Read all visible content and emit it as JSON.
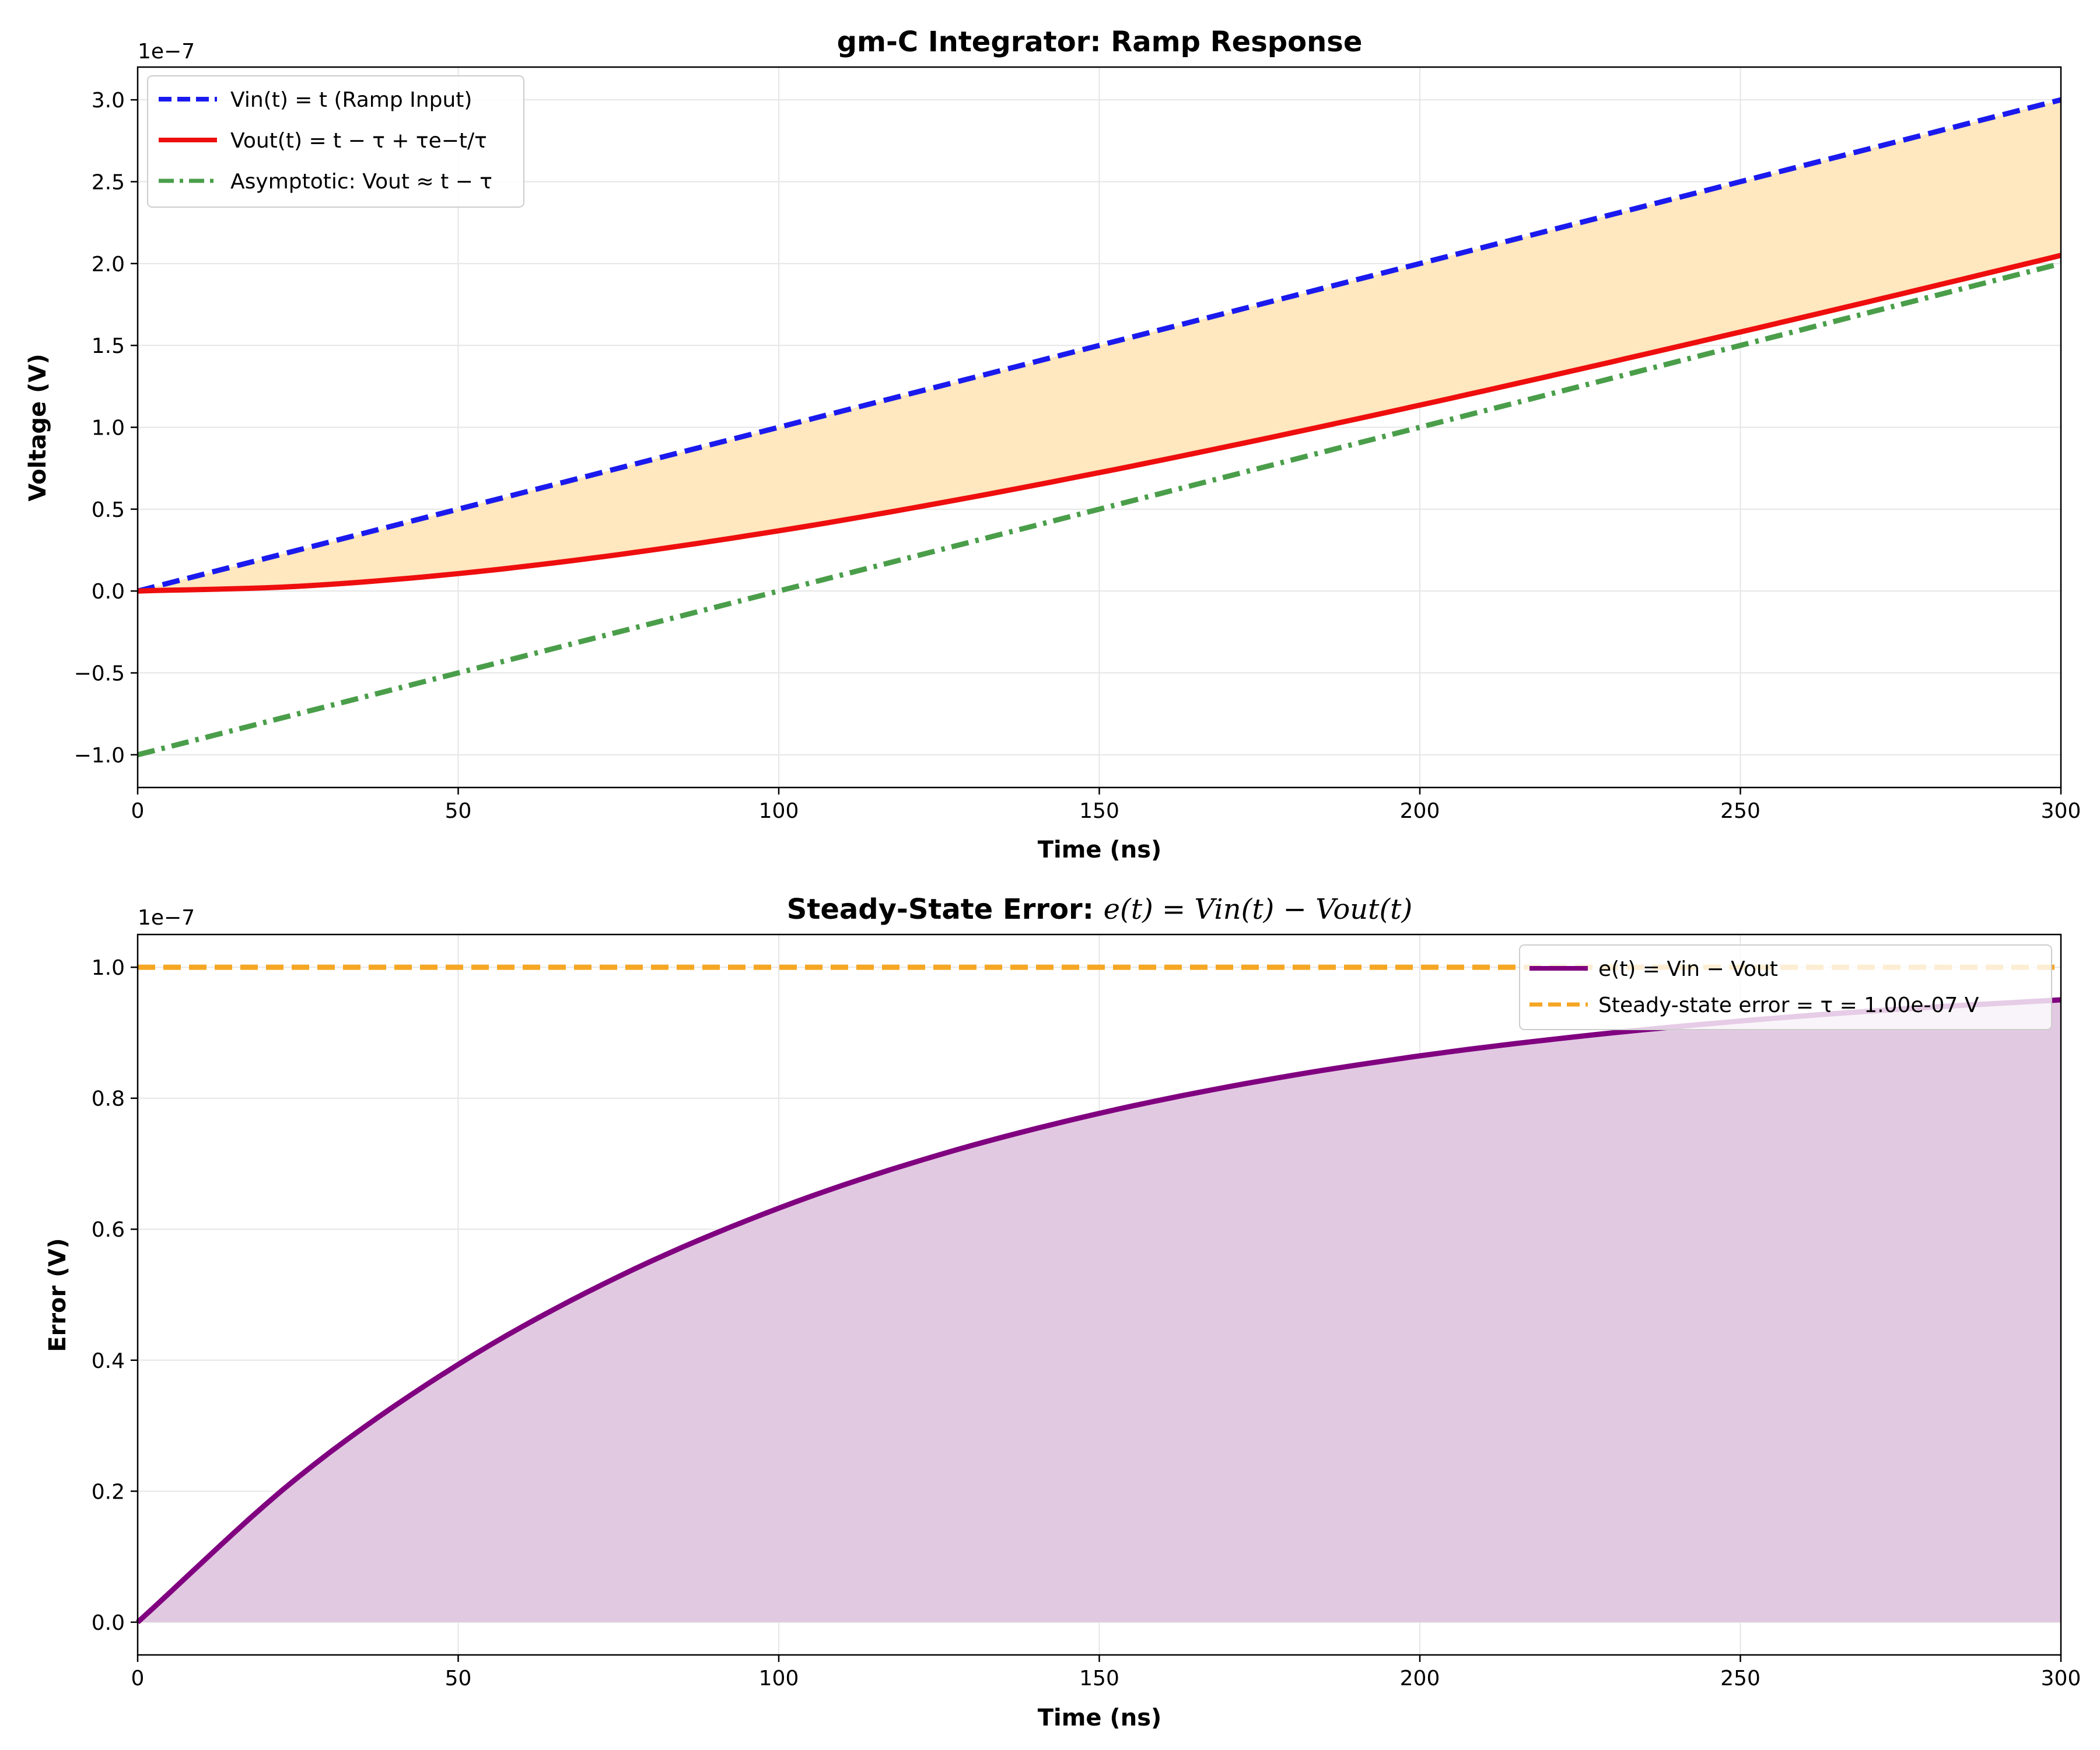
{
  "chart_data": [
    {
      "type": "line",
      "title": "gm-C Integrator: Ramp Response",
      "xlabel": "Time (ns)",
      "ylabel": "Voltage (V)",
      "y_offset_label": "1e−7",
      "xlim": [
        0,
        300
      ],
      "ylim": [
        -1.2,
        3.2
      ],
      "xticks": [
        0,
        50,
        100,
        150,
        200,
        250,
        300
      ],
      "xtick_labels": [
        "0",
        "50",
        "100",
        "150",
        "200",
        "250",
        "300"
      ],
      "yticks": [
        -1.0,
        -0.5,
        0.0,
        0.5,
        1.0,
        1.5,
        2.0,
        2.5,
        3.0
      ],
      "ytick_labels": [
        "−1.0",
        "−0.5",
        "0.0",
        "0.5",
        "1.0",
        "1.5",
        "2.0",
        "2.5",
        "3.0"
      ],
      "grid": true,
      "legend_position": "top-left",
      "fill_between": {
        "upper": "Vin",
        "lower": "Vout",
        "color": "#ffe7bf"
      },
      "series": [
        {
          "name": "V_in(t) = t (Ramp Input)",
          "legend_label": "Vin(t) = t (Ramp Input)",
          "style": "dashed",
          "color": "#1a1aee",
          "x": [
            0,
            300
          ],
          "y": [
            0.0,
            3.0
          ]
        },
        {
          "name": "V_out(t) = t − τ + τe^(−t/τ)",
          "legend_label": "Vout(t) = t − τ + τe−t/τ",
          "style": "solid",
          "color": "#ee0e0e",
          "x": [
            0,
            25,
            50,
            75,
            100,
            125,
            150,
            175,
            200,
            225,
            250,
            275,
            300
          ],
          "y": [
            0.0,
            0.0288,
            0.1065,
            0.2224,
            0.3679,
            0.5365,
            0.7231,
            0.9238,
            1.1353,
            1.3554,
            1.5821,
            1.8139,
            2.0498
          ]
        },
        {
          "name": "Asymptotic: V_out ≈ t − τ",
          "legend_label": "Asymptotic: Vout ≈ t − τ",
          "style": "dashdot",
          "color": "#4a9e4a",
          "x": [
            0,
            300
          ],
          "y": [
            -1.0,
            2.0
          ]
        }
      ]
    },
    {
      "type": "area",
      "title": "Steady-State Error: e(t) = V_in(t) − V_out(t)",
      "title_bold": "Steady-State Error: ",
      "title_math": "e(t) = Vin(t) − Vout(t)",
      "xlabel": "Time (ns)",
      "ylabel": "Error (V)",
      "y_offset_label": "1e−7",
      "xlim": [
        0,
        300
      ],
      "ylim": [
        -0.05,
        1.05
      ],
      "xticks": [
        0,
        50,
        100,
        150,
        200,
        250,
        300
      ],
      "xtick_labels": [
        "0",
        "50",
        "100",
        "150",
        "200",
        "250",
        "300"
      ],
      "yticks": [
        0.0,
        0.2,
        0.4,
        0.6,
        0.8,
        1.0
      ],
      "ytick_labels": [
        "0.0",
        "0.2",
        "0.4",
        "0.6",
        "0.8",
        "1.0"
      ],
      "grid": true,
      "legend_position": "top-right",
      "fill_color": "#e2c9e2",
      "series": [
        {
          "name": "e(t) = V_in − V_out",
          "legend_label": "e(t) = Vin − Vout",
          "style": "solid",
          "color": "#800080",
          "x": [
            0,
            25,
            50,
            75,
            100,
            125,
            150,
            175,
            200,
            225,
            250,
            275,
            300
          ],
          "y": [
            0.0,
            0.2212,
            0.3935,
            0.5276,
            0.6321,
            0.7135,
            0.7769,
            0.8262,
            0.8647,
            0.8946,
            0.9179,
            0.9361,
            0.9502
          ]
        },
        {
          "name": "Steady-state error = τ = 1.00e-07 V",
          "legend_label": "Steady-state error = τ = 1.00e-07 V",
          "style": "dashed",
          "color": "#f5a623",
          "x": [
            0,
            300
          ],
          "y": [
            1.0,
            1.0
          ]
        }
      ]
    }
  ]
}
